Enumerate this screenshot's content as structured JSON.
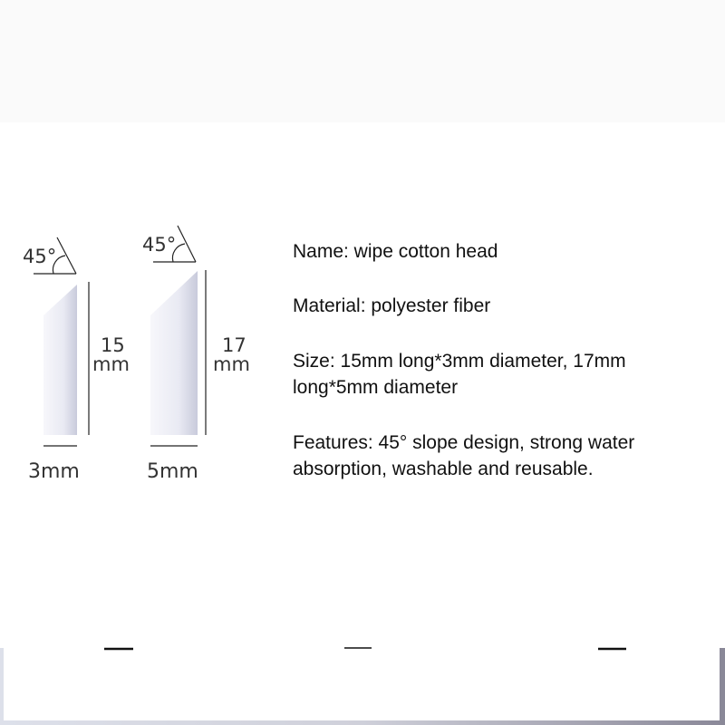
{
  "diagram": {
    "left": {
      "angle": "45°",
      "length_value": "15",
      "length_unit": "mm",
      "width": "3mm"
    },
    "right": {
      "angle": "45°",
      "length_value": "17",
      "length_unit": "mm",
      "width": "5mm"
    }
  },
  "specs": {
    "name": "Name: wipe cotton head",
    "material": "Material: polyester fiber",
    "size": "Size: 15mm long*3mm diameter, 17mm long*5mm diameter",
    "features": "Features: 45° slope design, strong water absorption, washable and reusable."
  },
  "colors": {
    "head_light": "#f4f5fb",
    "head_shadow": "#c9cbdc",
    "frame": "#a9a9b9"
  }
}
